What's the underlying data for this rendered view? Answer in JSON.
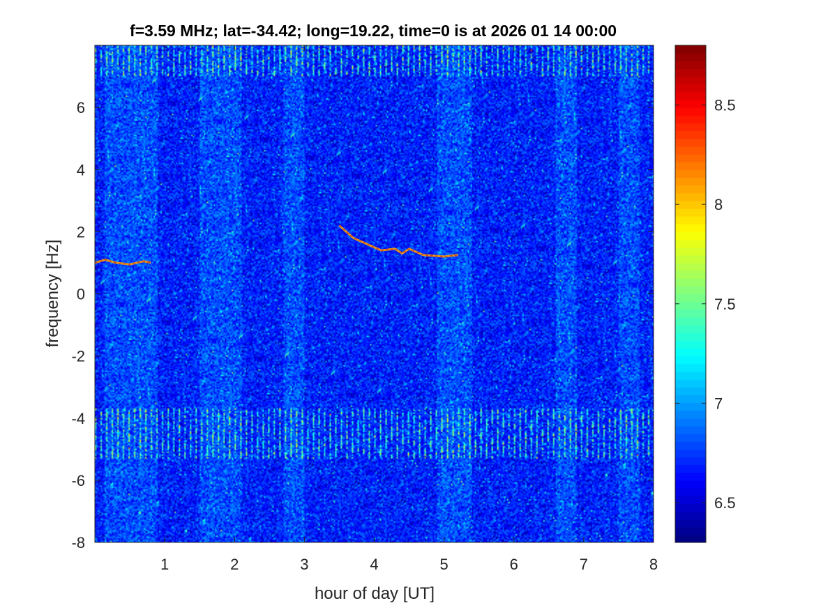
{
  "window": {
    "title": "f=3.59 MHz;  lat=-34.42; long=19.22, time=0 is at 2026 01 14 00:00"
  },
  "chart_data": {
    "type": "heatmap",
    "title": "f=3.59 MHz;  lat=-34.42; long=19.22, time=0 is at 2026 01 14 00:00",
    "xlabel": "hour of day [UT]",
    "ylabel": "frequency [Hz]",
    "xlim": [
      0,
      8
    ],
    "ylim": [
      -8,
      8
    ],
    "x_ticks": [
      1,
      2,
      3,
      4,
      5,
      6,
      7,
      8
    ],
    "x_tick_labels": [
      "1",
      "2",
      "3",
      "4",
      "5",
      "6",
      "7",
      "8"
    ],
    "y_ticks": [
      -8,
      -6,
      -4,
      -2,
      0,
      2,
      4,
      6
    ],
    "y_tick_labels": [
      "-8",
      "-6",
      "-4",
      "-2",
      "0",
      "2",
      "4",
      "6"
    ],
    "colorbar": {
      "colormap": "jet",
      "clim": [
        6.3,
        8.8
      ],
      "ticks": [
        6.5,
        7,
        7.5,
        8,
        8.5
      ],
      "tick_labels": [
        "6.5",
        "7",
        "7.5",
        "8",
        "8.5"
      ]
    },
    "background_level": 6.8,
    "brighter_time_bands": [
      [
        0.15,
        0.9
      ],
      [
        1.5,
        2.1
      ],
      [
        2.7,
        3.0
      ],
      [
        4.9,
        5.4
      ],
      [
        6.6,
        6.9
      ],
      [
        7.5,
        7.8
      ]
    ],
    "interference_bands_hz": [
      [
        -5.3,
        -3.7
      ],
      [
        7.0,
        8.0
      ]
    ],
    "doppler_traces": [
      {
        "points": [
          [
            0.0,
            1.0
          ],
          [
            0.15,
            1.1
          ],
          [
            0.3,
            1.0
          ],
          [
            0.5,
            0.95
          ],
          [
            0.7,
            1.05
          ],
          [
            0.8,
            1.0
          ]
        ]
      },
      {
        "points": [
          [
            3.5,
            2.2
          ],
          [
            3.7,
            1.8
          ],
          [
            3.9,
            1.6
          ],
          [
            4.1,
            1.4
          ],
          [
            4.3,
            1.45
          ],
          [
            4.4,
            1.3
          ],
          [
            4.5,
            1.45
          ],
          [
            4.7,
            1.25
          ],
          [
            5.0,
            1.2
          ],
          [
            5.2,
            1.25
          ]
        ]
      }
    ],
    "grid": false
  }
}
